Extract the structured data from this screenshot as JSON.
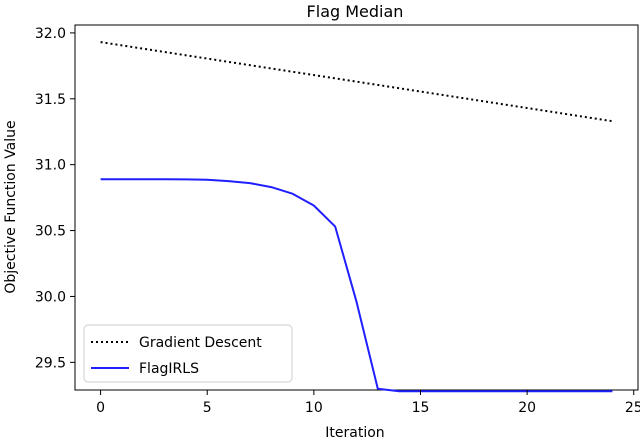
{
  "chart_data": {
    "type": "line",
    "title": "Flag Median",
    "xlabel": "Iteration",
    "ylabel": "Objective Function Value",
    "xlim": [
      -1.2,
      25.2
    ],
    "ylim": [
      29.29,
      32.06
    ],
    "xticks": [
      0,
      5,
      10,
      15,
      20,
      25
    ],
    "yticks": [
      29.5,
      30.0,
      30.5,
      31.0,
      31.5,
      32.0
    ],
    "ytick_labels": [
      "29.5",
      "30.0",
      "30.5",
      "31.0",
      "31.5",
      "32.0"
    ],
    "grid": false,
    "legend_position": "lower-left",
    "series": [
      {
        "name": "Gradient Descent",
        "color": "#000000",
        "style": "dotted",
        "x": [
          0,
          24
        ],
        "y": [
          31.93,
          31.33
        ]
      },
      {
        "name": "FlagIRLS",
        "color": "#1f1fff",
        "style": "solid",
        "x": [
          0,
          1,
          2,
          3,
          4,
          5,
          6,
          7,
          8,
          9,
          10,
          11,
          12,
          13,
          14,
          15,
          16,
          17,
          18,
          19,
          20,
          21,
          22,
          23,
          24
        ],
        "y": [
          30.89,
          30.89,
          30.89,
          30.89,
          30.888,
          30.885,
          30.875,
          30.86,
          30.83,
          30.78,
          30.69,
          30.53,
          29.96,
          29.3,
          29.28,
          29.28,
          29.28,
          29.28,
          29.28,
          29.28,
          29.28,
          29.28,
          29.28,
          29.28,
          29.28
        ]
      }
    ]
  }
}
